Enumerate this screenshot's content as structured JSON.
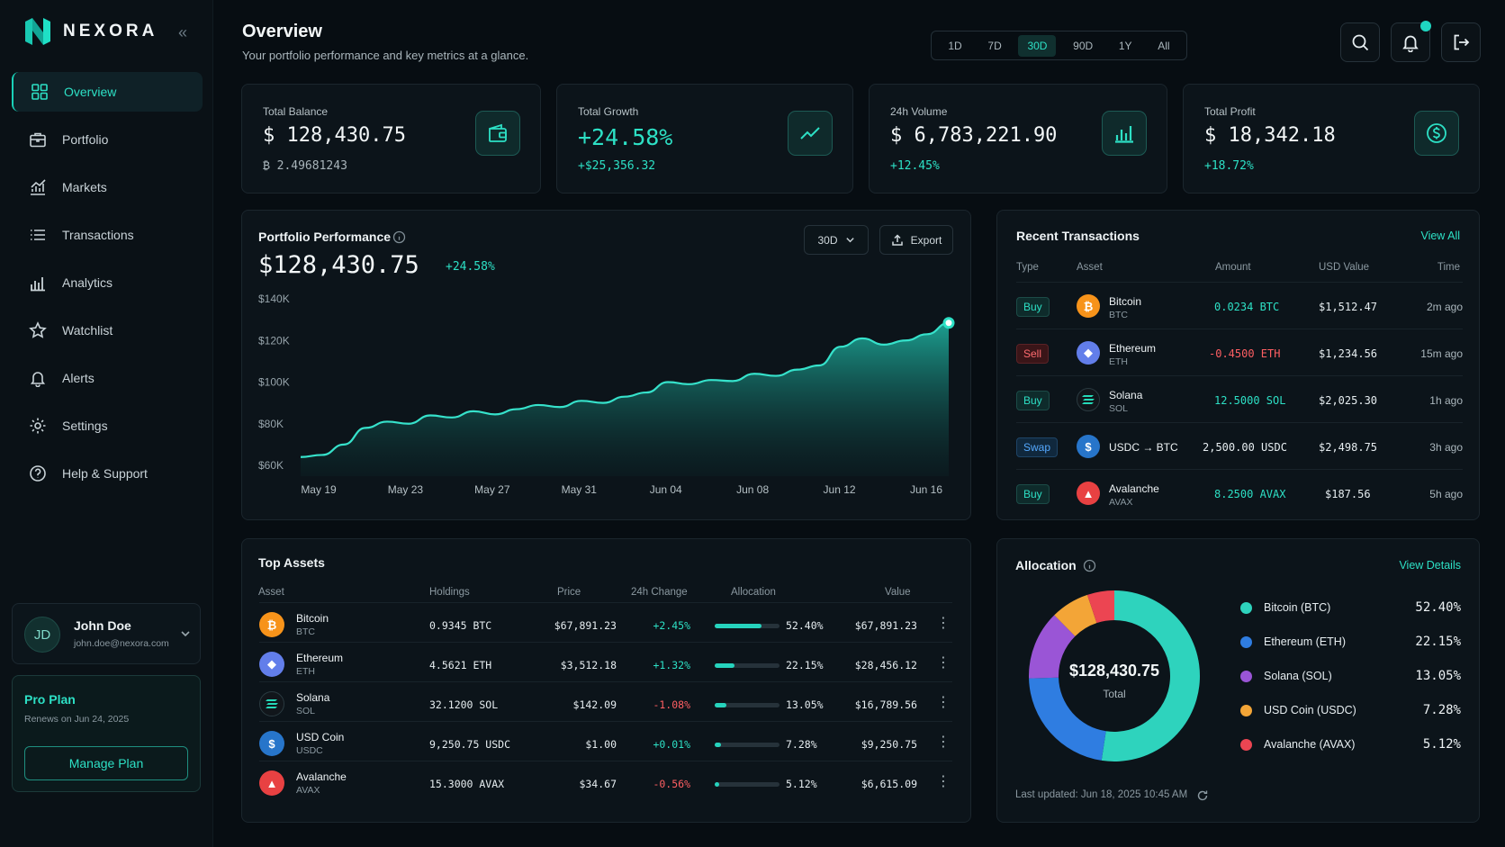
{
  "brand": {
    "name": "NEXORA"
  },
  "nav": [
    {
      "label": "Overview",
      "icon": "grid-icon"
    },
    {
      "label": "Portfolio",
      "icon": "briefcase-icon"
    },
    {
      "label": "Markets",
      "icon": "chart-line-icon"
    },
    {
      "label": "Transactions",
      "icon": "list-icon"
    },
    {
      "label": "Analytics",
      "icon": "bar-chart-icon"
    },
    {
      "label": "Watchlist",
      "icon": "star-icon"
    },
    {
      "label": "Alerts",
      "icon": "bell-icon"
    },
    {
      "label": "Settings",
      "icon": "gear-icon"
    },
    {
      "label": "Help & Support",
      "icon": "help-icon"
    }
  ],
  "user": {
    "initials": "JD",
    "name": "John Doe",
    "email": "john.doe@nexora.com"
  },
  "plan": {
    "title": "Pro Plan",
    "renews": "Renews on Jun 24, 2025",
    "button": "Manage Plan"
  },
  "header": {
    "title": "Overview",
    "subtitle": "Your portfolio performance and key metrics at a glance.",
    "ranges": [
      "1D",
      "7D",
      "30D",
      "90D",
      "1Y",
      "All"
    ],
    "selected_range": "30D"
  },
  "stats": [
    {
      "label": "Total Balance",
      "value": "$ 128,430.75",
      "sub": "₿ 2.49681243",
      "icon": "wallet-icon"
    },
    {
      "label": "Total Growth",
      "value": "+24.58%",
      "sub": "+$25,356.32",
      "icon": "trend-up-icon"
    },
    {
      "label": "24h Volume",
      "value": "$ 6,783,221.90",
      "sub": "+12.45%",
      "icon": "bar-chart-icon"
    },
    {
      "label": "Total Profit",
      "value": "$ 18,342.18",
      "sub": "+18.72%",
      "icon": "dollar-icon"
    }
  ],
  "performance": {
    "title": "Portfolio Performance",
    "value": "$128,430.75",
    "change": "+24.58%",
    "range_button": "30D",
    "export_button": "Export"
  },
  "chart_data": {
    "type": "area",
    "title": "Portfolio Performance",
    "xlabel": "",
    "ylabel": "",
    "x_ticks": [
      "May 19",
      "May 23",
      "May 27",
      "May 31",
      "Jun 04",
      "Jun 08",
      "Jun 12",
      "Jun 16"
    ],
    "y_ticks": [
      "$140K",
      "$120K",
      "$100K",
      "$80K",
      "$60K"
    ],
    "ylim": [
      60000,
      140000
    ],
    "x": [
      "May 19",
      "May 20",
      "May 21",
      "May 22",
      "May 23",
      "May 24",
      "May 25",
      "May 26",
      "May 27",
      "May 28",
      "May 29",
      "May 30",
      "May 31",
      "Jun 01",
      "Jun 02",
      "Jun 03",
      "Jun 04",
      "Jun 05",
      "Jun 06",
      "Jun 07",
      "Jun 08",
      "Jun 09",
      "Jun 10",
      "Jun 11",
      "Jun 12",
      "Jun 13",
      "Jun 14",
      "Jun 15",
      "Jun 16",
      "Jun 17",
      "Jun 18"
    ],
    "series": [
      {
        "values": [
          64000,
          65000,
          70000,
          78000,
          81000,
          80000,
          84000,
          83000,
          86000,
          84500,
          87000,
          89000,
          88000,
          91000,
          90000,
          93000,
          95000,
          100000,
          99000,
          101000,
          100500,
          104000,
          103000,
          106000,
          108000,
          117000,
          121000,
          118000,
          120000,
          123000,
          128430
        ]
      }
    ],
    "grid": false,
    "legend": "none"
  },
  "transactions": {
    "title": "Recent Transactions",
    "view_all": "View All",
    "columns": [
      "Type",
      "Asset",
      "Amount",
      "USD Value",
      "Time"
    ],
    "rows": [
      {
        "type": "Buy",
        "name": "Bitcoin",
        "symbol": "BTC",
        "amount": "0.0234 BTC",
        "usd": "$1,512.47",
        "time": "2m ago"
      },
      {
        "type": "Sell",
        "name": "Ethereum",
        "symbol": "ETH",
        "amount": "-0.4500 ETH",
        "usd": "$1,234.56",
        "time": "15m ago"
      },
      {
        "type": "Buy",
        "name": "Solana",
        "symbol": "SOL",
        "amount": "12.5000 SOL",
        "usd": "$2,025.30",
        "time": "1h ago"
      },
      {
        "type": "Swap",
        "name": "USDC → BTC",
        "symbol": "",
        "amount": "2,500.00 USDC",
        "usd": "$2,498.75",
        "time": "3h ago"
      },
      {
        "type": "Buy",
        "name": "Avalanche",
        "symbol": "AVAX",
        "amount": "8.2500 AVAX",
        "usd": "$187.56",
        "time": "5h ago"
      }
    ]
  },
  "assets": {
    "title": "Top Assets",
    "columns": [
      "Asset",
      "Holdings",
      "Price",
      "24h Change",
      "Allocation",
      "Value"
    ],
    "rows": [
      {
        "name": "Bitcoin",
        "symbol": "BTC",
        "holdings": "0.9345 BTC",
        "price": "$67,891.23",
        "change": "+2.45%",
        "allocation": "52.40%",
        "alloc_value": 0.524,
        "value": "$67,891.23"
      },
      {
        "name": "Ethereum",
        "symbol": "ETH",
        "holdings": "4.5621 ETH",
        "price": "$3,512.18",
        "change": "+1.32%",
        "allocation": "22.15%",
        "alloc_value": 0.2215,
        "value": "$28,456.12"
      },
      {
        "name": "Solana",
        "symbol": "SOL",
        "holdings": "32.1200 SOL",
        "price": "$142.09",
        "change": "-1.08%",
        "allocation": "13.05%",
        "alloc_value": 0.1305,
        "value": "$16,789.56"
      },
      {
        "name": "USD Coin",
        "symbol": "USDC",
        "holdings": "9,250.75 USDC",
        "price": "$1.00",
        "change": "+0.01%",
        "allocation": "7.28%",
        "alloc_value": 0.0728,
        "value": "$9,250.75"
      },
      {
        "name": "Avalanche",
        "symbol": "AVAX",
        "holdings": "15.3000 AVAX",
        "price": "$34.67",
        "change": "-0.56%",
        "allocation": "5.12%",
        "alloc_value": 0.0512,
        "value": "$6,615.09"
      }
    ]
  },
  "allocation": {
    "title": "Allocation",
    "view_details": "View Details",
    "center_value": "$128,430.75",
    "center_label": "Total",
    "updated": "Last updated: Jun 18, 2025 10:45 AM",
    "items": [
      {
        "name": "Bitcoin (BTC)",
        "pct": "52.40%",
        "value": 52.4,
        "color": "#2ed3bd"
      },
      {
        "name": "Ethereum (ETH)",
        "pct": "22.15%",
        "value": 22.15,
        "color": "#2f7de1"
      },
      {
        "name": "Solana (SOL)",
        "pct": "13.05%",
        "value": 13.05,
        "color": "#9a55d6"
      },
      {
        "name": "USD Coin (USDC)",
        "pct": "7.28%",
        "value": 7.28,
        "color": "#f3a537"
      },
      {
        "name": "Avalanche (AVAX)",
        "pct": "5.12%",
        "value": 5.12,
        "color": "#ec4552"
      }
    ]
  },
  "colors": {
    "accent": "#2de0c5",
    "negative": "#ff5f63",
    "background": "#070d12"
  }
}
